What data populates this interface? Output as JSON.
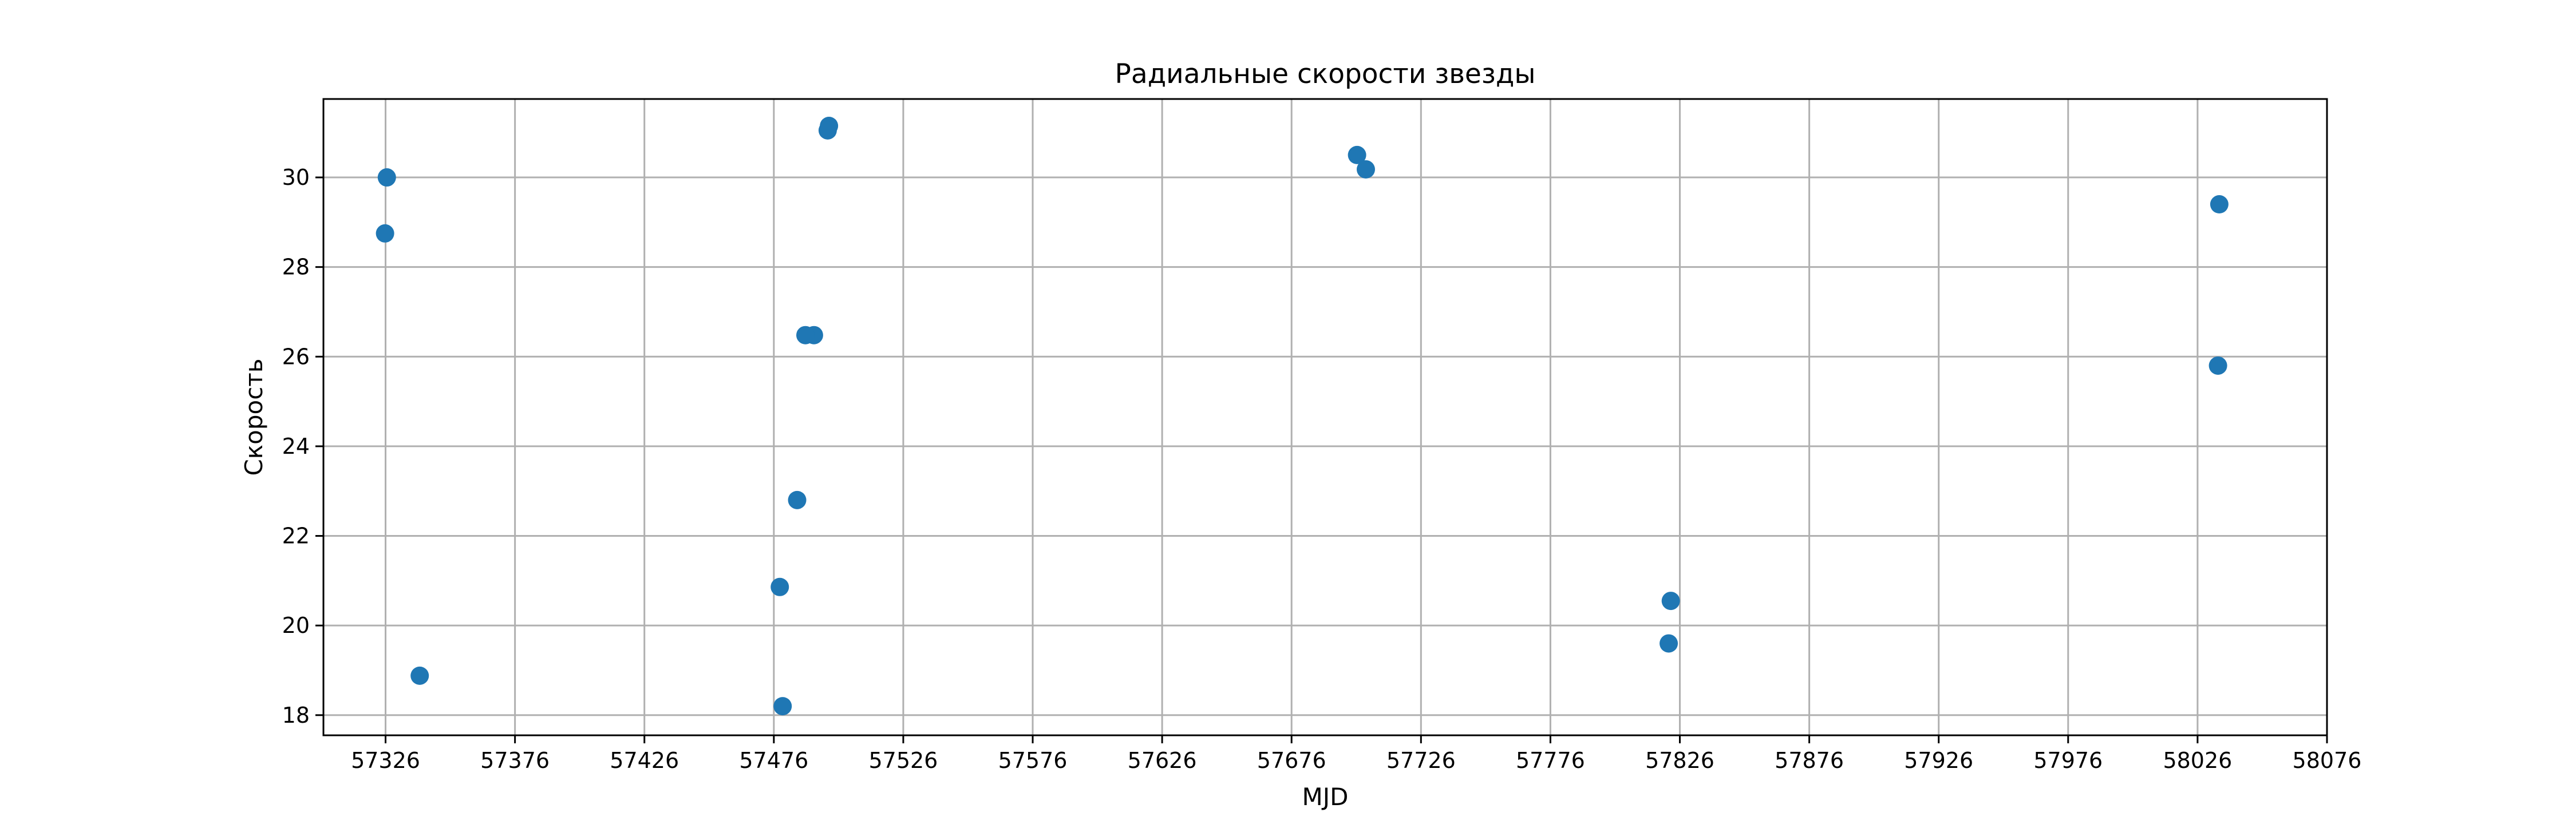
{
  "chart_data": {
    "type": "scatter",
    "title": "Радиальные скорости звезды",
    "xlabel": "MJD",
    "ylabel": "Скорость",
    "xlim": [
      57302,
      58076
    ],
    "ylim": [
      17.55,
      31.75
    ],
    "x_ticks": [
      57326,
      57376,
      57426,
      57476,
      57526,
      57576,
      57626,
      57676,
      57726,
      57776,
      57826,
      57876,
      57926,
      57976,
      58026,
      58076
    ],
    "y_ticks": [
      18,
      20,
      22,
      24,
      26,
      28,
      30
    ],
    "grid": true,
    "marker_color": "#1f77b4",
    "series": [
      {
        "x": [
          57326.5,
          57325.8,
          57339.2,
          57478.3,
          57479.4,
          57491.5,
          57485.0,
          57488.2,
          57497.3,
          57496.8,
          57701.3,
          57704.7,
          57822.5,
          57821.7,
          58034.4,
          58033.9
        ],
        "y": [
          30.0,
          28.75,
          18.88,
          20.86,
          18.2,
          26.48,
          22.8,
          26.48,
          31.15,
          31.05,
          30.5,
          30.18,
          20.55,
          19.6,
          29.4,
          25.8
        ]
      }
    ]
  }
}
